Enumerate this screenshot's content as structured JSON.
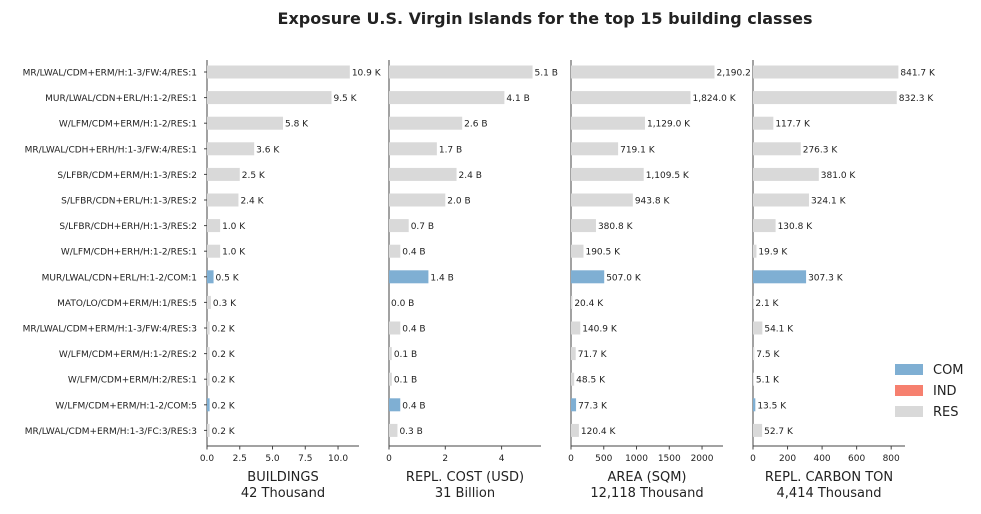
{
  "chart_data": {
    "type": "bar",
    "orientation": "horizontal",
    "title": "Exposure U.S. Virgin Islands for the top 15 building classes",
    "categories": [
      "MR/LWAL/CDM+ERM/H:1-3/FW:4/RES:1",
      "MUR/LWAL/CDN+ERL/H:1-2/RES:1",
      "W/LFM/CDM+ERM/H:1-2/RES:1",
      "MR/LWAL/CDH+ERH/H:1-3/FW:4/RES:1",
      "S/LFBR/CDM+ERM/H:1-3/RES:2",
      "S/LFBR/CDN+ERL/H:1-3/RES:2",
      "S/LFBR/CDH+ERH/H:1-3/RES:2",
      "W/LFM/CDH+ERH/H:1-2/RES:1",
      "MUR/LWAL/CDN+ERL/H:1-2/COM:1",
      "MATO/LO/CDM+ERM/H:1/RES:5",
      "MR/LWAL/CDM+ERM/H:1-3/FW:4/RES:3",
      "W/LFM/CDM+ERM/H:1-2/RES:2",
      "W/LFM/CDM+ERM/H:2/RES:1",
      "W/LFM/CDM+ERM/H:1-2/COM:5",
      "MR/LWAL/CDM+ERM/H:1-3/FC:3/RES:3"
    ],
    "occupancy": [
      "RES",
      "RES",
      "RES",
      "RES",
      "RES",
      "RES",
      "RES",
      "RES",
      "COM",
      "RES",
      "RES",
      "RES",
      "RES",
      "COM",
      "RES"
    ],
    "legend": {
      "placement": "lower-right",
      "entries": [
        {
          "name": "COM",
          "color": "#7fafd3"
        },
        {
          "name": "IND",
          "color": "#f6806f"
        },
        {
          "name": "RES",
          "color": "#d9d9d9"
        }
      ]
    },
    "panels": [
      {
        "xlabel": "BUILDINGS",
        "total": "42 Thousand",
        "xlim": [
          0,
          11.6
        ],
        "xticks": [
          0,
          2.5,
          5,
          7.5,
          10
        ],
        "xtick_labels": [
          "0.0",
          "2.5",
          "5.0",
          "7.5",
          "10.0"
        ],
        "values": [
          10.9,
          9.5,
          5.8,
          3.6,
          2.5,
          2.4,
          1.0,
          1.0,
          0.5,
          0.3,
          0.2,
          0.2,
          0.2,
          0.2,
          0.2
        ],
        "labels": [
          "10.9 K",
          "9.5 K",
          "5.8 K",
          "3.6 K",
          "2.5 K",
          "2.4 K",
          "1.0 K",
          "1.0 K",
          "0.5 K",
          "0.3 K",
          "0.2 K",
          "0.2 K",
          "0.2 K",
          "0.2 K",
          "0.2 K"
        ]
      },
      {
        "xlabel": "REPL. COST (USD)",
        "total": "31 Billion",
        "xlim": [
          0,
          5.4
        ],
        "xticks": [
          0,
          2,
          4
        ],
        "xtick_labels": [
          "0",
          "2",
          "4"
        ],
        "values": [
          5.1,
          4.1,
          2.6,
          1.7,
          2.4,
          2.0,
          0.7,
          0.4,
          1.4,
          0.0,
          0.4,
          0.1,
          0.1,
          0.4,
          0.3
        ],
        "labels": [
          "5.1 B",
          "4.1 B",
          "2.6 B",
          "1.7 B",
          "2.4 B",
          "2.0 B",
          "0.7 B",
          "0.4 B",
          "1.4 B",
          "0.0 B",
          "0.4 B",
          "0.1 B",
          "0.1 B",
          "0.4 B",
          "0.3 B"
        ]
      },
      {
        "xlabel": "AREA (SQM)",
        "total": "12,118 Thousand",
        "xlim": [
          0,
          2320
        ],
        "xticks": [
          0,
          500,
          1000,
          1500,
          2000
        ],
        "xtick_labels": [
          "0",
          "500",
          "1000",
          "1500",
          "2000"
        ],
        "values": [
          2190.2,
          1824.0,
          1129.0,
          719.1,
          1109.5,
          943.8,
          380.8,
          190.5,
          507.0,
          20.4,
          140.9,
          71.7,
          48.5,
          77.3,
          120.4
        ],
        "labels": [
          "2,190.2",
          "1,824.0 K",
          "1,129.0 K",
          "719.1 K",
          "1,109.5 K",
          "943.8 K",
          "380.8 K",
          "190.5 K",
          "507.0 K",
          "20.4 K",
          "140.9 K",
          "71.7 K",
          "48.5 K",
          "77.3 K",
          "120.4 K"
        ]
      },
      {
        "xlabel": "REPL. CARBON TON",
        "total": "4,414 Thousand",
        "xlim": [
          0,
          880
        ],
        "xticks": [
          0,
          200,
          400,
          600,
          800
        ],
        "xtick_labels": [
          "0",
          "200",
          "400",
          "600",
          "800"
        ],
        "values": [
          841.7,
          832.3,
          117.7,
          276.3,
          381.0,
          324.1,
          130.8,
          19.9,
          307.3,
          2.1,
          54.1,
          7.5,
          5.1,
          13.5,
          52.7
        ],
        "labels": [
          "841.7 K",
          "832.3 K",
          "117.7 K",
          "276.3 K",
          "381.0 K",
          "324.1 K",
          "130.8 K",
          "19.9 K",
          "307.3 K",
          "2.1 K",
          "54.1 K",
          "7.5 K",
          "5.1 K",
          "13.5 K",
          "52.7 K"
        ]
      }
    ]
  }
}
